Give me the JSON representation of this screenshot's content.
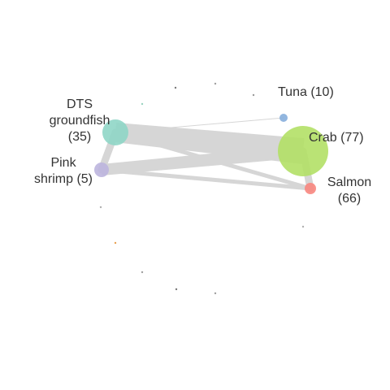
{
  "network": {
    "nodes": [
      {
        "id": "dts",
        "label_lines": [
          "DTS",
          "groundfish",
          "(35)"
        ],
        "color": "#8fd6c6"
      },
      {
        "id": "pink",
        "label_lines": [
          "Pink",
          "shrimp (5)"
        ],
        "color": "#bdb5de"
      },
      {
        "id": "tuna",
        "label_lines": [
          "Tuna (10)"
        ],
        "color": "#86aedb"
      },
      {
        "id": "crab",
        "label_lines": [
          "Crab (77)"
        ],
        "color": "#b2e066"
      },
      {
        "id": "salmon",
        "label_lines": [
          "Salmon",
          "(66)"
        ],
        "color": "#f8877f"
      }
    ],
    "edges": [
      {
        "source": "dts",
        "target": "crab",
        "weight": "heavy"
      },
      {
        "source": "pink",
        "target": "crab",
        "weight": "heavy"
      },
      {
        "source": "dts",
        "target": "pink",
        "weight": "medium"
      },
      {
        "source": "crab",
        "target": "salmon",
        "weight": "medium"
      },
      {
        "source": "dts",
        "target": "salmon",
        "weight": "light"
      },
      {
        "source": "pink",
        "target": "salmon",
        "weight": "light"
      },
      {
        "source": "dts",
        "target": "tuna",
        "weight": "thin"
      }
    ],
    "edge_color": "#d6d6d6",
    "minor_nodes": [
      {
        "id": "m1",
        "color": "#7a7a7a"
      },
      {
        "id": "m2",
        "color": "#a0a0a0"
      },
      {
        "id": "m3",
        "color": "#9ad3c0"
      },
      {
        "id": "m4",
        "color": "#9a9a9a"
      },
      {
        "id": "m5",
        "color": "#b0b0b0"
      },
      {
        "id": "m6",
        "color": "#e8a050"
      },
      {
        "id": "m7",
        "color": "#a0a0a0"
      },
      {
        "id": "m8",
        "color": "#7a7a7a"
      },
      {
        "id": "m9",
        "color": "#a0a0a0"
      },
      {
        "id": "m10",
        "color": "#b0b0b0"
      }
    ]
  }
}
